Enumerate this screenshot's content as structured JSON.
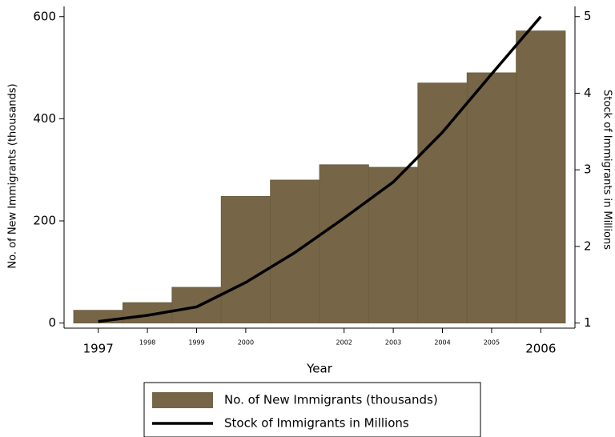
{
  "chart_data": {
    "type": "bar",
    "categories": [
      "1997",
      "1998",
      "1999",
      "2000",
      null,
      "2002",
      "2003",
      "2004",
      "2005",
      "2006"
    ],
    "x_label": "Year",
    "y_label": "No. of New Immigrants (thousands)",
    "y2_label": "Stock of Immigrants in Millions",
    "series": [
      {
        "name": "No. of New Immigrants (thousands)",
        "type": "bar",
        "color": "#766647",
        "values": [
          25,
          40,
          70,
          248,
          280,
          310,
          305,
          470,
          490,
          572
        ]
      },
      {
        "name": "Stock of Immigrants in Millions",
        "type": "line",
        "color": "#000000",
        "axis": "y2",
        "values": [
          1.02,
          1.1,
          1.21,
          1.53,
          1.92,
          2.37,
          2.84,
          3.49,
          4.25,
          5.0
        ]
      }
    ],
    "ylim": [
      -10,
      620
    ],
    "yticks": [
      0,
      200,
      400,
      600
    ],
    "y2lim": [
      0.933,
      5.133
    ],
    "y2ticks": [
      1,
      2,
      3,
      4,
      5
    ],
    "legend": "bottom"
  }
}
